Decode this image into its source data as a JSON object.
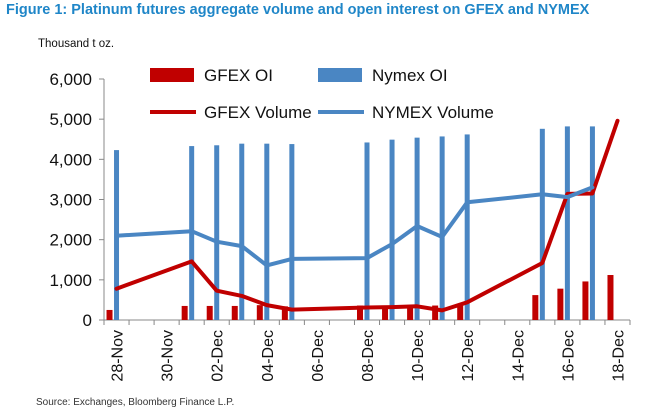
{
  "figure": {
    "title": "Figure 1: Platinum futures aggregate volume and open interest on GFEX and NYMEX",
    "unit": "Thousand t oz.",
    "source": "Source: Exchanges, Bloomberg Finance L.P."
  },
  "colors": {
    "gfex": "#c00000",
    "nymex": "#4a86c3",
    "axis": "#888888",
    "title": "#1f86c8"
  },
  "chart_data": {
    "type": "bar",
    "title": "Figure 1: Platinum futures aggregate volume and open interest on GFEX and NYMEX",
    "ylabel": "Thousand t oz.",
    "ylim": [
      0,
      6000
    ],
    "yticks": [
      0,
      1000,
      2000,
      3000,
      4000,
      5000,
      6000
    ],
    "ytick_labels": [
      "0",
      "1,000",
      "2,000",
      "3,000",
      "4,000",
      "5,000",
      "6,000"
    ],
    "x": [
      "28-Nov",
      "29-Nov",
      "30-Nov",
      "01-Dec",
      "02-Dec",
      "03-Dec",
      "04-Dec",
      "05-Dec",
      "06-Dec",
      "07-Dec",
      "08-Dec",
      "09-Dec",
      "10-Dec",
      "11-Dec",
      "12-Dec",
      "13-Dec",
      "14-Dec",
      "15-Dec",
      "16-Dec",
      "17-Dec",
      "18-Dec"
    ],
    "xtick_labels": [
      "28-Nov",
      "30-Nov",
      "02-Dec",
      "04-Dec",
      "06-Dec",
      "08-Dec",
      "10-Dec",
      "12-Dec",
      "14-Dec",
      "16-Dec",
      "18-Dec"
    ],
    "legend": "top",
    "grid": false,
    "series": [
      {
        "name": "GFEX OI",
        "kind": "bar",
        "points": [
          [
            "28-Nov",
            250
          ],
          [
            "01-Dec",
            350
          ],
          [
            "02-Dec",
            350
          ],
          [
            "03-Dec",
            350
          ],
          [
            "04-Dec",
            370
          ],
          [
            "05-Dec",
            340
          ],
          [
            "08-Dec",
            360
          ],
          [
            "09-Dec",
            360
          ],
          [
            "10-Dec",
            360
          ],
          [
            "11-Dec",
            360
          ],
          [
            "12-Dec",
            360
          ],
          [
            "15-Dec",
            620
          ],
          [
            "16-Dec",
            780
          ],
          [
            "17-Dec",
            960
          ],
          [
            "18-Dec",
            1120
          ]
        ]
      },
      {
        "name": "Nymex OI",
        "kind": "bar",
        "points": [
          [
            "28-Nov",
            4230
          ],
          [
            "01-Dec",
            4330
          ],
          [
            "02-Dec",
            4350
          ],
          [
            "03-Dec",
            4390
          ],
          [
            "04-Dec",
            4390
          ],
          [
            "05-Dec",
            4380
          ],
          [
            "08-Dec",
            4420
          ],
          [
            "09-Dec",
            4490
          ],
          [
            "10-Dec",
            4540
          ],
          [
            "11-Dec",
            4570
          ],
          [
            "12-Dec",
            4620
          ],
          [
            "15-Dec",
            4760
          ],
          [
            "16-Dec",
            4820
          ],
          [
            "17-Dec",
            4820
          ]
        ]
      },
      {
        "name": "GFEX Volume",
        "kind": "line",
        "points": [
          [
            "28-Nov",
            780
          ],
          [
            "01-Dec",
            1460
          ],
          [
            "02-Dec",
            730
          ],
          [
            "03-Dec",
            600
          ],
          [
            "04-Dec",
            370
          ],
          [
            "05-Dec",
            260
          ],
          [
            "08-Dec",
            310
          ],
          [
            "09-Dec",
            320
          ],
          [
            "10-Dec",
            340
          ],
          [
            "11-Dec",
            240
          ],
          [
            "12-Dec",
            440
          ],
          [
            "15-Dec",
            1420
          ],
          [
            "16-Dec",
            3140
          ],
          [
            "17-Dec",
            3150
          ],
          [
            "18-Dec",
            4960
          ]
        ]
      },
      {
        "name": "NYMEX Volume",
        "kind": "line",
        "points": [
          [
            "28-Nov",
            2100
          ],
          [
            "01-Dec",
            2210
          ],
          [
            "02-Dec",
            1950
          ],
          [
            "03-Dec",
            1840
          ],
          [
            "04-Dec",
            1360
          ],
          [
            "05-Dec",
            1520
          ],
          [
            "08-Dec",
            1540
          ],
          [
            "09-Dec",
            1890
          ],
          [
            "10-Dec",
            2340
          ],
          [
            "11-Dec",
            2070
          ],
          [
            "12-Dec",
            2930
          ],
          [
            "15-Dec",
            3130
          ],
          [
            "16-Dec",
            3060
          ],
          [
            "17-Dec",
            3300
          ]
        ]
      }
    ]
  }
}
